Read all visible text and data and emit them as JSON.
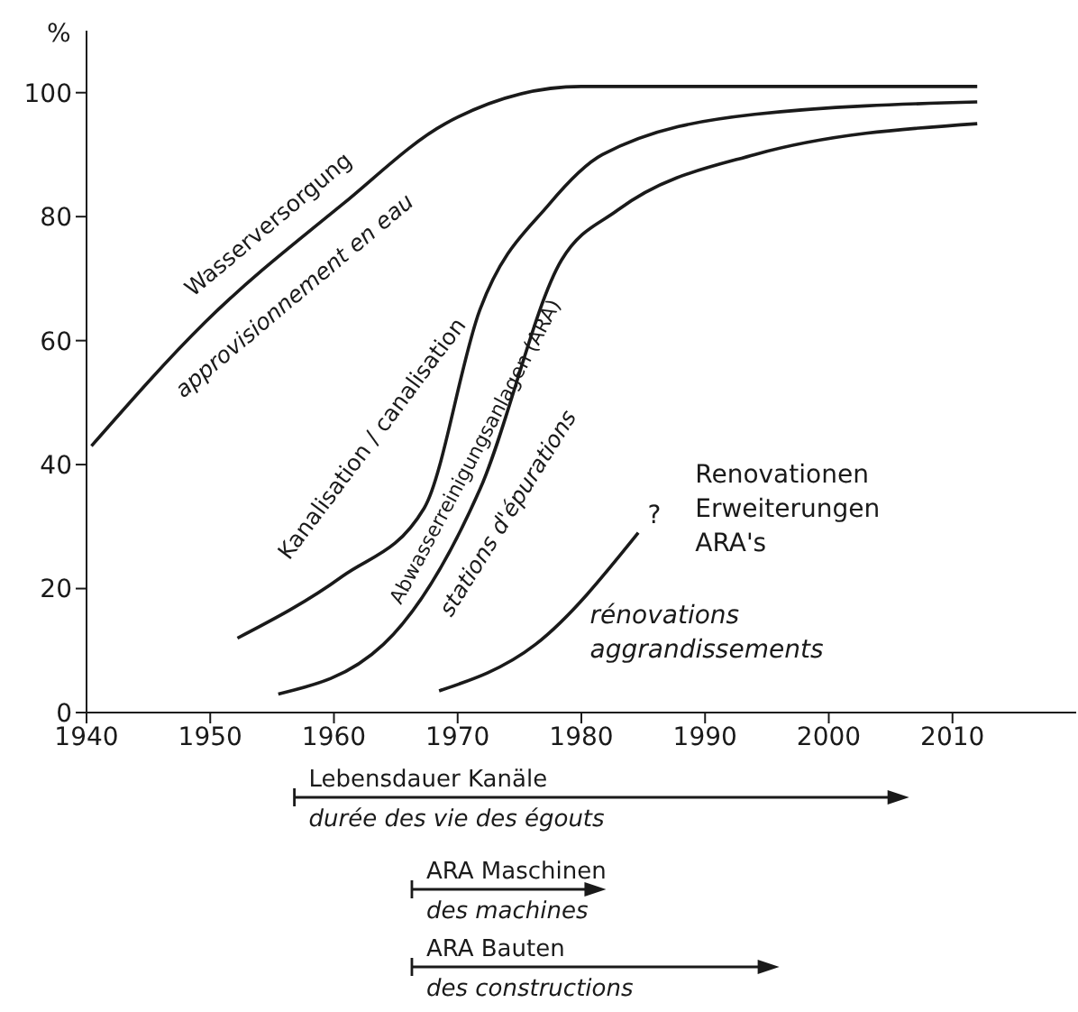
{
  "chart_data": {
    "type": "line",
    "ylabel": "%",
    "xlim": [
      1940,
      2020
    ],
    "xticks": [
      1940,
      1950,
      1960,
      1970,
      1980,
      1990,
      2000,
      2010
    ],
    "ylim": [
      0,
      110
    ],
    "yticks": [
      0,
      20,
      40,
      60,
      80,
      100
    ],
    "marker": "none",
    "line_style": "solid",
    "series": [
      {
        "color": "#1a1a1a",
        "x": [
          1940.4,
          1949.6,
          1960.7,
          1969,
          1980,
          1995,
          2012
        ],
        "values": [
          43,
          63,
          82,
          95,
          101,
          101,
          101
        ]
      },
      {
        "color": "#1a1a1a",
        "x": [
          1952.2,
          1960.7,
          1967.3,
          1971.8,
          1977.4,
          1981.7,
          1994,
          2012
        ],
        "values": [
          12,
          22,
          33,
          65,
          82,
          90,
          96.5,
          98.5
        ]
      },
      {
        "color": "#1a1a1a",
        "x": [
          1955.5,
          1964,
          1971.8,
          1978.4,
          1982.9,
          1994,
          2012
        ],
        "values": [
          3,
          11,
          36,
          73,
          81,
          90,
          95
        ]
      },
      {
        "color": "#1a1a1a",
        "x": [
          1968.5,
          1976.3,
          1984.6
        ],
        "values": [
          3.5,
          11,
          29
        ]
      }
    ],
    "annotations": [
      "Wasserversorgung",
      "approvisionnement en eau",
      "Kanalisation / canalisation",
      "Abwasserreinigungsanlagen (ARA)",
      "stations d'épurations",
      "?",
      "Renovationen\nErweiterungen\nARA's",
      "rénovations\naggrandissements",
      "Lebensdauer  Kanäle\ndurée  des vie des égouts",
      "ARA  Maschinen\ndes machines",
      "ARA  Bauten\ndes constructions"
    ]
  }
}
